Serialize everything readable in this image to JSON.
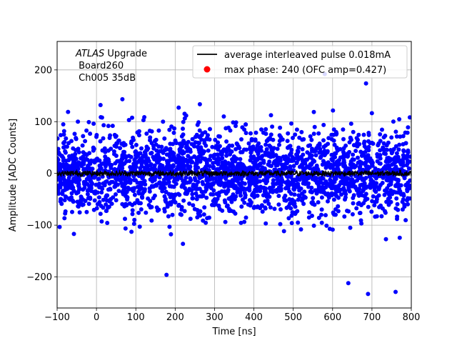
{
  "chart_data": {
    "type": "scatter",
    "title": "",
    "xlabel": "Time [ns]",
    "ylabel": "Amplitude [ADC Counts]",
    "xlim": [
      -100,
      800
    ],
    "ylim": [
      -260,
      255
    ],
    "xticks": [
      -100,
      0,
      100,
      200,
      300,
      400,
      500,
      600,
      700,
      800
    ],
    "xtick_labels": [
      "−100",
      "0",
      "100",
      "200",
      "300",
      "400",
      "500",
      "600",
      "700",
      "800"
    ],
    "yticks": [
      -200,
      -100,
      0,
      100,
      200
    ],
    "ytick_labels": [
      "−200",
      "−100",
      "0",
      "100",
      "200"
    ],
    "grid": true,
    "legend_position": "top-right",
    "annotation": {
      "italic": "ATLAS",
      "rest": " Upgrade",
      "line2": " Board260",
      "line3": " Ch005 35dB"
    },
    "series": [
      {
        "name": "average interleaved pulse 0.018mA",
        "kind": "line",
        "color": "#000000",
        "x_range": [
          -100,
          800
        ],
        "mean": 0,
        "noise_amplitude": 5
      },
      {
        "name": "max phase: 240 (OFC amp=0.427)",
        "kind": "scatter",
        "color": "#0000ff",
        "x_range": [
          -100,
          800
        ],
        "mean": 0,
        "spread_sigma": 40,
        "outliers": [
          {
            "x": 178,
            "y": -196
          },
          {
            "x": 640,
            "y": -212
          },
          {
            "x": 690,
            "y": -233
          },
          {
            "x": 760,
            "y": -229
          },
          {
            "x": 685,
            "y": 174
          },
          {
            "x": 580,
            "y": 192
          }
        ]
      }
    ],
    "legend_colors": {
      "line": "#000000",
      "marker": "#ff0000"
    }
  }
}
